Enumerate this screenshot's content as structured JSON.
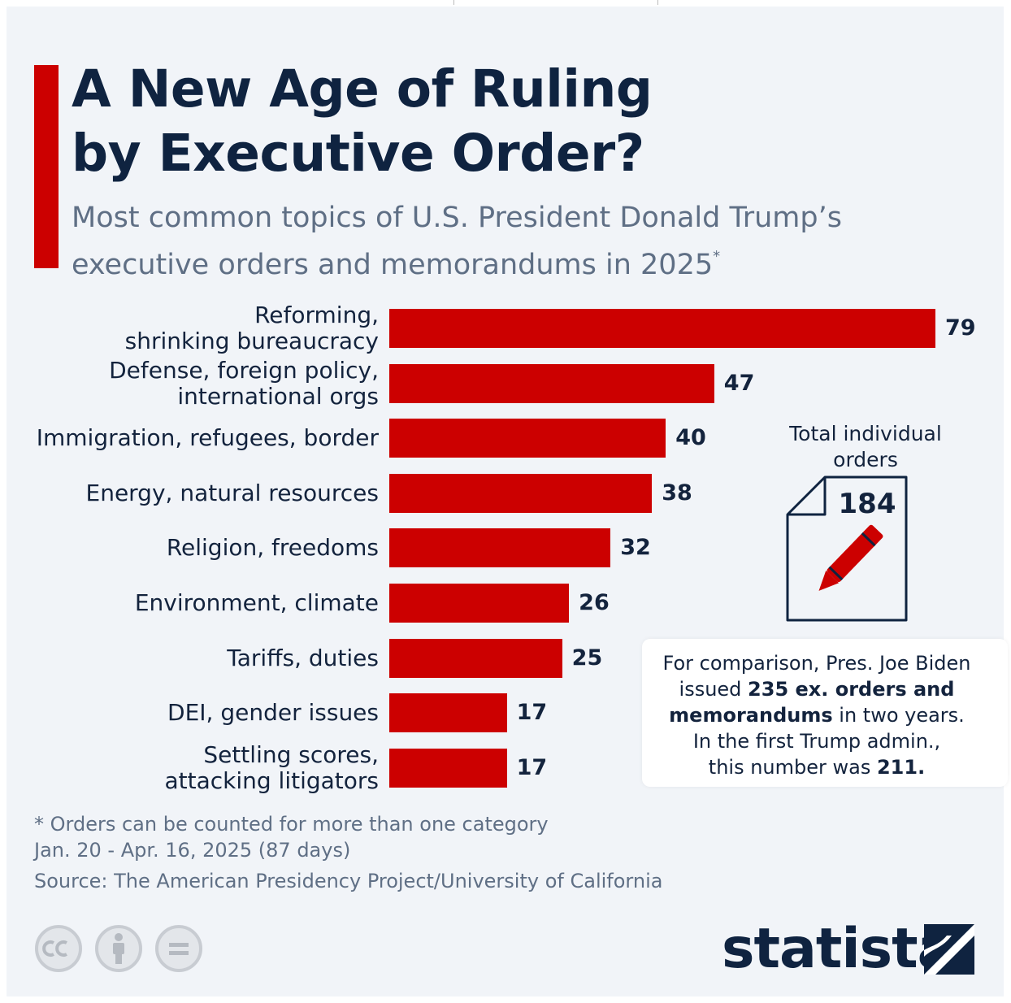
{
  "title": {
    "line1": "A New Age of Ruling",
    "line2": "by Executive Order?"
  },
  "subtitle": {
    "line1": "Most common topics of U.S. President Donald Trump’s",
    "line2": "executive orders and memorandums in 2025",
    "marker": "*"
  },
  "chart_data": {
    "type": "bar",
    "orientation": "horizontal",
    "categories": [
      [
        "Reforming,",
        "shrinking bureaucracy"
      ],
      [
        "Defense, foreign policy,",
        "international orgs"
      ],
      [
        "Immigration, refugees, border"
      ],
      [
        "Energy, natural resources"
      ],
      [
        "Religion, freedoms"
      ],
      [
        "Environment, climate"
      ],
      [
        "Tariffs, duties"
      ],
      [
        "DEI, gender issues"
      ],
      [
        "Settling scores,",
        "attacking litigators"
      ]
    ],
    "values": [
      79,
      47,
      40,
      38,
      32,
      26,
      25,
      17,
      17
    ],
    "bar_color": "#cc0000",
    "xlim": [
      0,
      79
    ],
    "grid": false
  },
  "total": {
    "label_line1": "Total individual",
    "label_line2": "orders",
    "value": "184"
  },
  "note": {
    "l1": "For comparison, Pres. Joe Biden",
    "l2a": "issued ",
    "l2b": "235 ex. orders and",
    "l3a": "memorandums",
    "l3b": " in two years.",
    "l4": "In the first Trump admin.,",
    "l5a": "this number was ",
    "l5b": "211."
  },
  "footnote": {
    "line1": "* Orders can be counted for more than one category",
    "line2": "Jan. 20 - Apr. 16, 2025 (87 days)"
  },
  "source": "Source: The American Presidency Project/University of California",
  "license_icons": [
    "creative-commons-icon",
    "attribution-icon",
    "no-derivatives-icon"
  ],
  "brand": "statista",
  "colors": {
    "accent": "#cc0000",
    "title": "#0f2340",
    "subtitle": "#5f6f85",
    "background": "#f1f4f8"
  }
}
